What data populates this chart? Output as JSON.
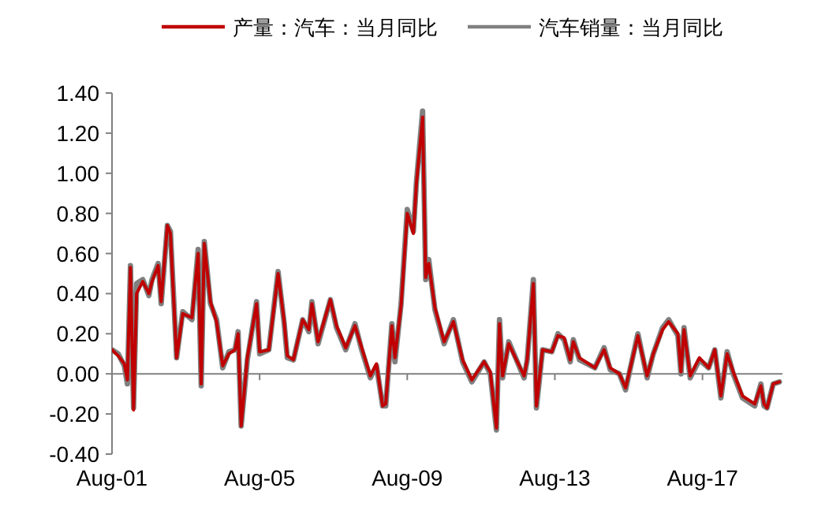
{
  "chart_data": {
    "type": "line",
    "x": [
      "2001-08",
      "2001-10",
      "2001-12",
      "2002-01",
      "2002-02",
      "2002-03",
      "2002-04",
      "2002-06",
      "2002-08",
      "2002-09",
      "2002-11",
      "2002-12",
      "2003-02",
      "2003-03",
      "2003-05",
      "2003-07",
      "2003-10",
      "2003-12",
      "2004-01",
      "2004-02",
      "2004-04",
      "2004-06",
      "2004-08",
      "2004-10",
      "2004-12",
      "2005-01",
      "2005-02",
      "2005-04",
      "2005-07",
      "2005-08",
      "2005-11",
      "2006-02",
      "2006-04",
      "2006-05",
      "2006-07",
      "2006-10",
      "2006-12",
      "2007-01",
      "2007-03",
      "2007-07",
      "2007-09",
      "2007-12",
      "2008-03",
      "2008-05",
      "2008-08",
      "2008-10",
      "2008-12",
      "2009-01",
      "2009-03",
      "2009-04",
      "2009-06",
      "2009-08",
      "2009-10",
      "2009-11",
      "2010-01",
      "2010-02",
      "2010-03",
      "2010-05",
      "2010-08",
      "2010-11",
      "2011-02",
      "2011-05",
      "2011-09",
      "2011-11",
      "2012-01",
      "2012-02",
      "2012-03",
      "2012-05",
      "2012-10",
      "2012-11",
      "2013-01",
      "2013-02",
      "2013-04",
      "2013-07",
      "2013-09",
      "2013-11",
      "2014-01",
      "2014-02",
      "2014-04",
      "2014-09",
      "2014-12",
      "2015-02",
      "2015-05",
      "2015-07",
      "2015-11",
      "2016-02",
      "2016-04",
      "2016-07",
      "2016-09",
      "2016-12",
      "2017-01",
      "2017-02",
      "2017-04",
      "2017-07",
      "2017-10",
      "2017-12",
      "2018-02",
      "2018-04",
      "2018-06",
      "2018-09",
      "2019-01",
      "2019-03",
      "2019-04",
      "2019-05",
      "2019-07",
      "2019-09"
    ],
    "series": [
      {
        "name": "产量：汽车：当月同比",
        "color": "#c00000",
        "values": [
          0.12,
          0.09,
          0.05,
          -0.03,
          0.53,
          -0.18,
          0.4,
          0.46,
          0.4,
          0.46,
          0.54,
          0.36,
          0.74,
          0.7,
          0.08,
          0.3,
          0.28,
          0.6,
          -0.05,
          0.65,
          0.36,
          0.26,
          0.04,
          0.1,
          0.12,
          0.2,
          -0.26,
          0.08,
          0.35,
          0.11,
          0.12,
          0.5,
          0.26,
          0.09,
          0.07,
          0.27,
          0.22,
          0.35,
          0.16,
          0.37,
          0.24,
          0.13,
          0.24,
          0.14,
          -0.01,
          0.05,
          -0.16,
          -0.15,
          0.24,
          0.08,
          0.34,
          0.8,
          0.7,
          0.95,
          1.28,
          0.48,
          0.55,
          0.33,
          0.16,
          0.26,
          0.07,
          -0.03,
          0.06,
          0.01,
          -0.27,
          0.25,
          -0.01,
          0.15,
          -0.01,
          0.07,
          0.45,
          -0.16,
          0.12,
          0.11,
          0.19,
          0.18,
          0.07,
          0.16,
          0.08,
          0.03,
          0.12,
          0.03,
          0.0,
          -0.07,
          0.19,
          -0.01,
          0.1,
          0.22,
          0.26,
          0.2,
          0.01,
          0.22,
          -0.01,
          0.08,
          0.03,
          0.12,
          -0.11,
          0.1,
          0.01,
          -0.11,
          -0.15,
          -0.06,
          -0.15,
          -0.17,
          -0.05,
          -0.04
        ]
      },
      {
        "name": "汽车销量：当月同比",
        "color": "#808080",
        "values": [
          0.12,
          0.1,
          0.04,
          -0.05,
          0.54,
          -0.17,
          0.45,
          0.47,
          0.39,
          0.47,
          0.55,
          0.35,
          0.74,
          0.71,
          0.08,
          0.31,
          0.27,
          0.62,
          -0.06,
          0.66,
          0.35,
          0.27,
          0.03,
          0.11,
          0.12,
          0.21,
          -0.26,
          0.07,
          0.36,
          0.1,
          0.12,
          0.51,
          0.25,
          0.08,
          0.07,
          0.27,
          0.21,
          0.36,
          0.15,
          0.37,
          0.23,
          0.12,
          0.25,
          0.13,
          -0.02,
          0.04,
          -0.16,
          -0.16,
          0.25,
          0.06,
          0.35,
          0.82,
          0.71,
          0.96,
          1.31,
          0.47,
          0.57,
          0.32,
          0.15,
          0.27,
          0.06,
          -0.04,
          0.06,
          0.0,
          -0.28,
          0.27,
          -0.02,
          0.16,
          -0.02,
          0.07,
          0.47,
          -0.17,
          0.12,
          0.11,
          0.2,
          0.17,
          0.06,
          0.17,
          0.07,
          0.03,
          0.13,
          0.02,
          0.0,
          -0.08,
          0.2,
          -0.02,
          0.1,
          0.23,
          0.27,
          0.19,
          0.0,
          0.23,
          -0.02,
          0.07,
          0.03,
          0.12,
          -0.12,
          0.11,
          0.0,
          -0.12,
          -0.16,
          -0.05,
          -0.16,
          -0.17,
          -0.05,
          -0.04
        ]
      }
    ],
    "xlim": [
      "2001-08",
      "2019-10"
    ],
    "xticks": [
      {
        "value": "2001-08",
        "label": "Aug-01"
      },
      {
        "value": "2005-08",
        "label": "Aug-05"
      },
      {
        "value": "2009-08",
        "label": "Aug-09"
      },
      {
        "value": "2013-08",
        "label": "Aug-13"
      },
      {
        "value": "2017-08",
        "label": "Aug-17"
      }
    ],
    "ylim": [
      -0.4,
      1.4
    ],
    "yticks": [
      {
        "value": -0.4,
        "label": "-0.40"
      },
      {
        "value": -0.2,
        "label": "-0.20"
      },
      {
        "value": 0,
        "label": "0.00"
      },
      {
        "value": 0.2,
        "label": "0.20"
      },
      {
        "value": 0.4,
        "label": "0.40"
      },
      {
        "value": 0.6,
        "label": "0.60"
      },
      {
        "value": 0.8,
        "label": "0.80"
      },
      {
        "value": 1.0,
        "label": "1.00"
      },
      {
        "value": 1.2,
        "label": "1.20"
      },
      {
        "value": 1.4,
        "label": "1.40"
      }
    ],
    "ref_lines": [
      {
        "axis": "y",
        "value": 0,
        "color": "#808080"
      }
    ],
    "legend": "top",
    "marker": "none",
    "line_style": "solid"
  }
}
